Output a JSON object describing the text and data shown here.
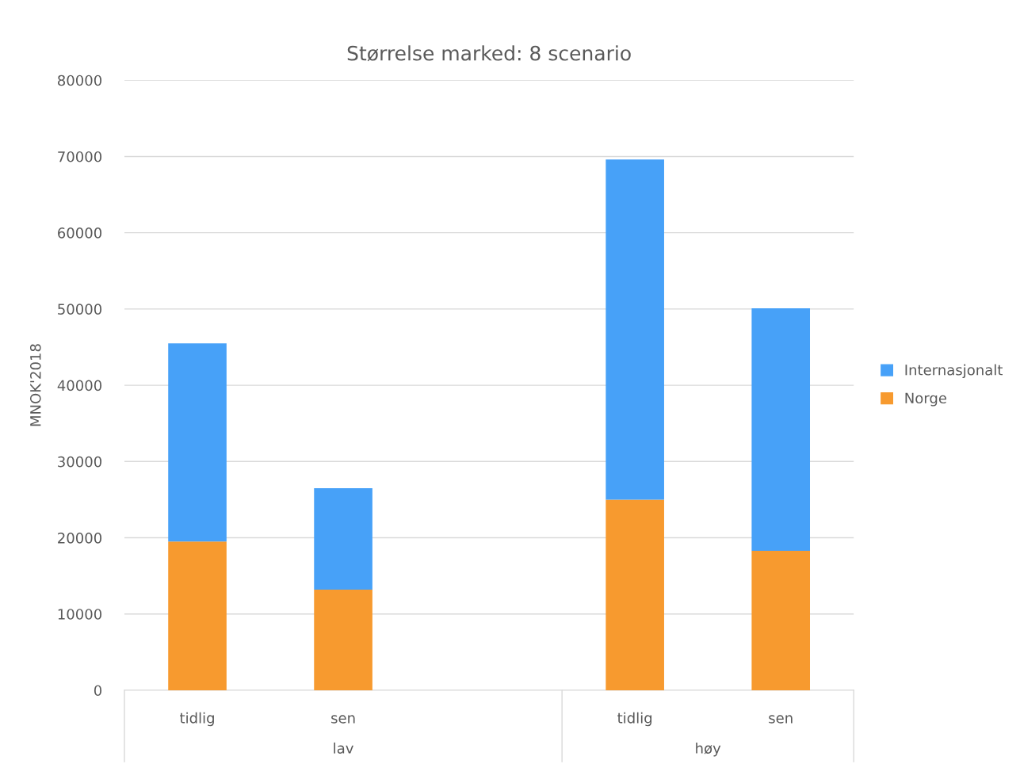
{
  "chart_data": {
    "type": "bar",
    "title": "Størrelse marked: 8 scenario",
    "ylabel": "MNOK'2018",
    "categories": [
      "tidlig",
      "sen",
      null,
      "tidlig",
      "sen"
    ],
    "annotations": [
      "lav",
      "høy"
    ],
    "stacked": true,
    "series": [
      {
        "name": "Norge",
        "color": "#f79a2f",
        "values": [
          19500,
          13200,
          null,
          25000,
          18300
        ]
      },
      {
        "name": "Internasjonalt",
        "color": "#47a1f8",
        "values": [
          26000,
          13300,
          null,
          44600,
          31800
        ]
      }
    ],
    "ylim": [
      0,
      80000
    ],
    "yticks": [
      0,
      10000,
      20000,
      30000,
      40000,
      50000,
      60000,
      70000,
      80000
    ],
    "grid": "y",
    "legend": "right"
  }
}
